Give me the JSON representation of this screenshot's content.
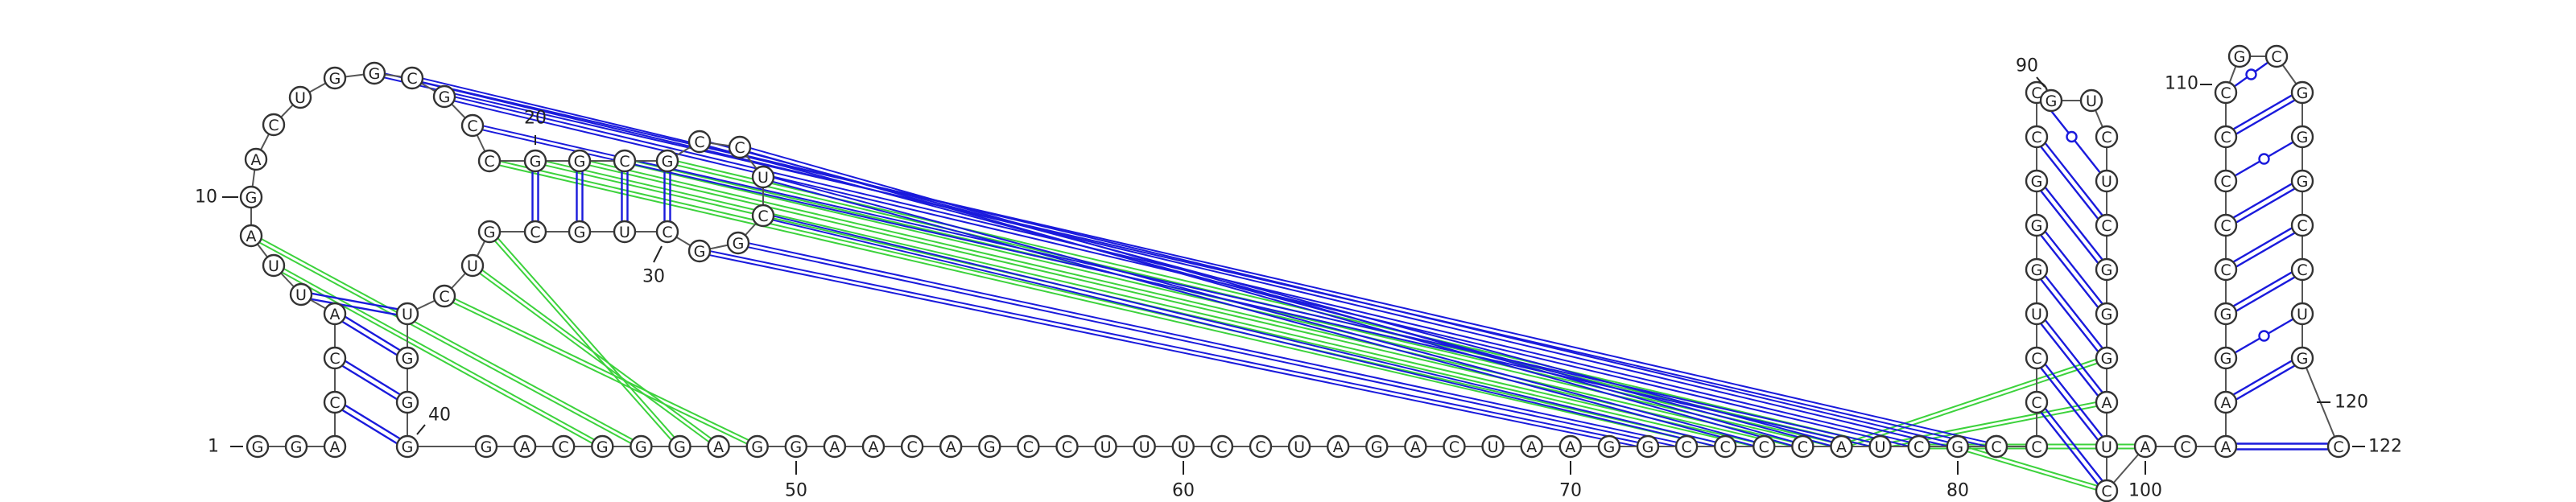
{
  "structure": {
    "sequence": "GGACCAUUAGACUGGCGCCGGCGCCUCGGCUGCGUCUGGGGACGGGAGGAACAGCCUUUCCUAGACUAAGGCCCCAUCGCCCCCUGGGCCGUCUCGGGAUCACAAGGCCCCCGCGGGCCUGC",
    "tick_labels": [
      "1",
      "10",
      "20",
      "30",
      "40",
      "50",
      "60",
      "70",
      "80",
      "90",
      "100",
      "110",
      "120",
      "122"
    ],
    "colors": {
      "wc_pair": "#1a1adc",
      "pseudoknot_green": "#3cd23c",
      "backbone": "#555555"
    }
  }
}
